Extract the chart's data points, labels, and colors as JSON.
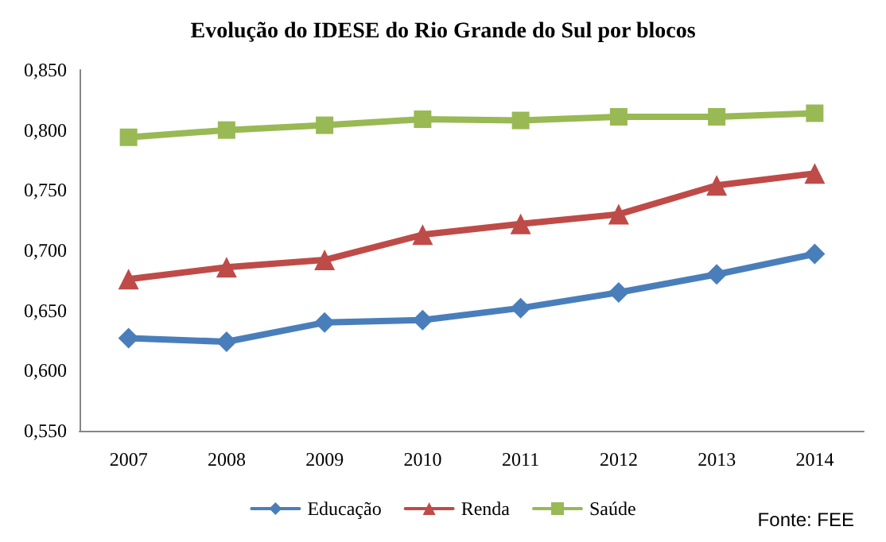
{
  "chart_data": {
    "type": "line",
    "title": "Evolução do IDESE do Rio Grande do Sul por blocos",
    "categories": [
      "2007",
      "2008",
      "2009",
      "2010",
      "2011",
      "2012",
      "2013",
      "2014"
    ],
    "series": [
      {
        "name": "Educação",
        "color": "#4a7ebb",
        "marker": "diamond",
        "values": [
          0.627,
          0.624,
          0.64,
          0.642,
          0.652,
          0.665,
          0.68,
          0.697
        ]
      },
      {
        "name": "Renda",
        "color": "#be4b48",
        "marker": "triangle",
        "values": [
          0.676,
          0.686,
          0.692,
          0.713,
          0.722,
          0.73,
          0.754,
          0.764
        ]
      },
      {
        "name": "Saúde",
        "color": "#98b954",
        "marker": "square",
        "values": [
          0.794,
          0.8,
          0.804,
          0.809,
          0.808,
          0.811,
          0.811,
          0.814
        ]
      }
    ],
    "ylim": [
      0.55,
      0.85
    ],
    "yticks": [
      {
        "value": 0.55,
        "label": "0,550"
      },
      {
        "value": 0.6,
        "label": "0,600"
      },
      {
        "value": 0.65,
        "label": "0,650"
      },
      {
        "value": 0.7,
        "label": "0,700"
      },
      {
        "value": 0.75,
        "label": "0,750"
      },
      {
        "value": 0.8,
        "label": "0,800"
      },
      {
        "value": 0.85,
        "label": "0,850"
      }
    ],
    "grid": false,
    "legend": "bottom",
    "line_style": "solid",
    "annotations": [
      "Fonte: FEE"
    ]
  }
}
